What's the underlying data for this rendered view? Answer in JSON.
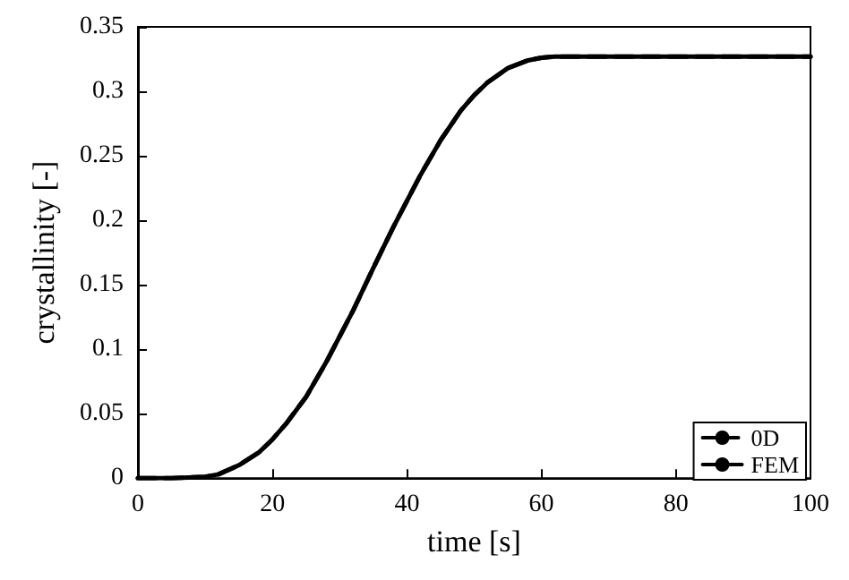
{
  "chart_data": {
    "type": "line",
    "xlabel": "time [s]",
    "ylabel": "crystallinity [-]",
    "x": [
      0,
      5,
      10,
      12,
      15,
      18,
      20,
      22,
      25,
      28,
      30,
      32,
      35,
      38,
      40,
      42,
      45,
      48,
      50,
      52,
      55,
      58,
      60,
      62,
      65,
      70,
      75,
      80,
      90,
      100
    ],
    "series": [
      {
        "name": "0D",
        "color": "#000000",
        "line_style": "dashed",
        "values": [
          0,
          0,
          0.001,
          0.003,
          0.01,
          0.02,
          0.03,
          0.042,
          0.063,
          0.09,
          0.11,
          0.13,
          0.163,
          0.195,
          0.215,
          0.235,
          0.262,
          0.285,
          0.297,
          0.307,
          0.318,
          0.324,
          0.326,
          0.327,
          0.327,
          0.327,
          0.327,
          0.327,
          0.327,
          0.327
        ]
      },
      {
        "name": "FEM",
        "color": "#000000",
        "line_style": "solid",
        "values": [
          0,
          0,
          0.001,
          0.003,
          0.01,
          0.02,
          0.03,
          0.042,
          0.063,
          0.09,
          0.11,
          0.13,
          0.163,
          0.195,
          0.215,
          0.235,
          0.262,
          0.285,
          0.297,
          0.307,
          0.318,
          0.324,
          0.326,
          0.327,
          0.327,
          0.327,
          0.327,
          0.327,
          0.327,
          0.327
        ]
      }
    ],
    "xlim": [
      0,
      100
    ],
    "xticks": [
      0,
      20,
      40,
      60,
      80,
      100
    ],
    "ylim": [
      0,
      0.35
    ],
    "yticks": [
      0,
      0.05,
      0.1,
      0.15,
      0.2,
      0.25,
      0.3,
      0.35
    ],
    "grid": false,
    "legend": "bottom right",
    "marker": "none"
  }
}
